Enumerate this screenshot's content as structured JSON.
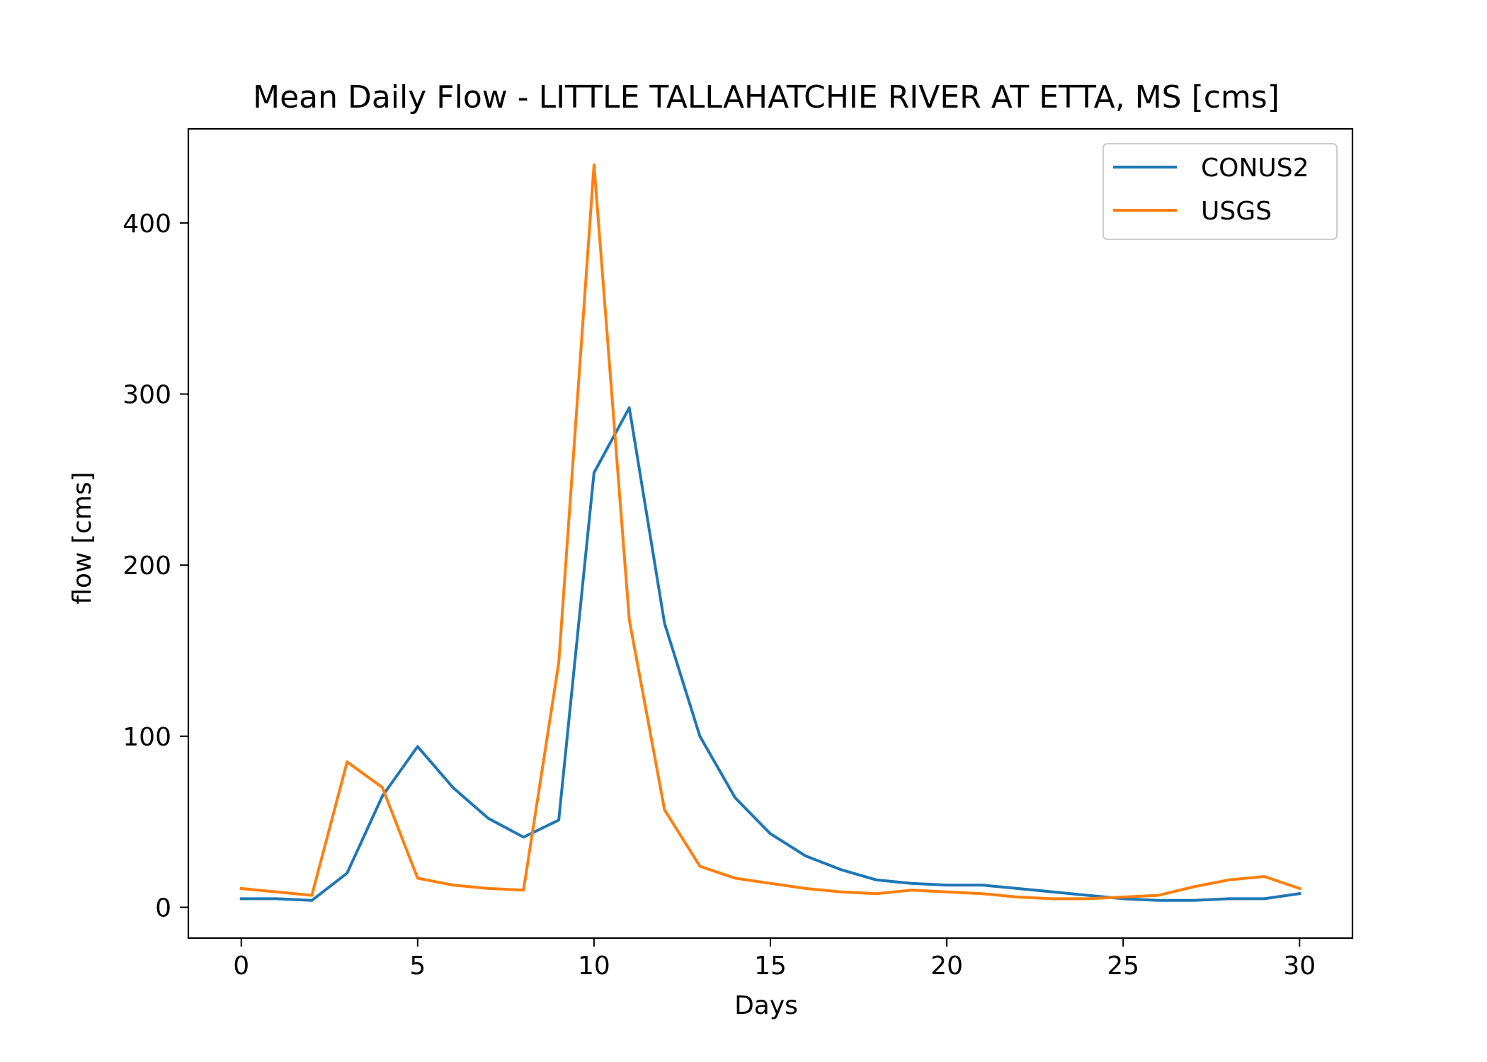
{
  "chart_data": {
    "type": "line",
    "title": "Mean Daily Flow - LITTLE TALLAHATCHIE RIVER AT ETTA, MS [cms]",
    "xlabel": "Days",
    "ylabel": "flow [cms]",
    "xlim": [
      -1.5,
      31.5
    ],
    "ylim": [
      -18,
      455
    ],
    "xticks": [
      0,
      5,
      10,
      15,
      20,
      25,
      30
    ],
    "xtick_labels": [
      "0",
      "5",
      "10",
      "15",
      "20",
      "25",
      "30"
    ],
    "yticks": [
      0,
      100,
      200,
      300,
      400
    ],
    "ytick_labels": [
      "0",
      "100",
      "200",
      "300",
      "400"
    ],
    "grid": false,
    "legend_position": "upper right",
    "x": [
      0,
      1,
      2,
      3,
      4,
      5,
      6,
      7,
      8,
      9,
      10,
      11,
      12,
      13,
      14,
      15,
      16,
      17,
      18,
      19,
      20,
      21,
      22,
      23,
      24,
      25,
      26,
      27,
      28,
      29,
      30
    ],
    "series": [
      {
        "name": "CONUS2",
        "color": "#1f77b4",
        "values": [
          5,
          5,
          4,
          20,
          65,
          94,
          70,
          52,
          41,
          51,
          254,
          292,
          166,
          100,
          64,
          43,
          30,
          22,
          16,
          14,
          13,
          13,
          11,
          9,
          7,
          5,
          4,
          4,
          5,
          5,
          8
        ]
      },
      {
        "name": "USGS",
        "color": "#ff7f0e",
        "values": [
          11,
          9,
          7,
          85,
          70,
          17,
          13,
          11,
          10,
          143,
          434,
          168,
          57,
          24,
          17,
          14,
          11,
          9,
          8,
          10,
          9,
          8,
          6,
          5,
          5,
          6,
          7,
          12,
          16,
          18,
          11
        ]
      }
    ]
  }
}
